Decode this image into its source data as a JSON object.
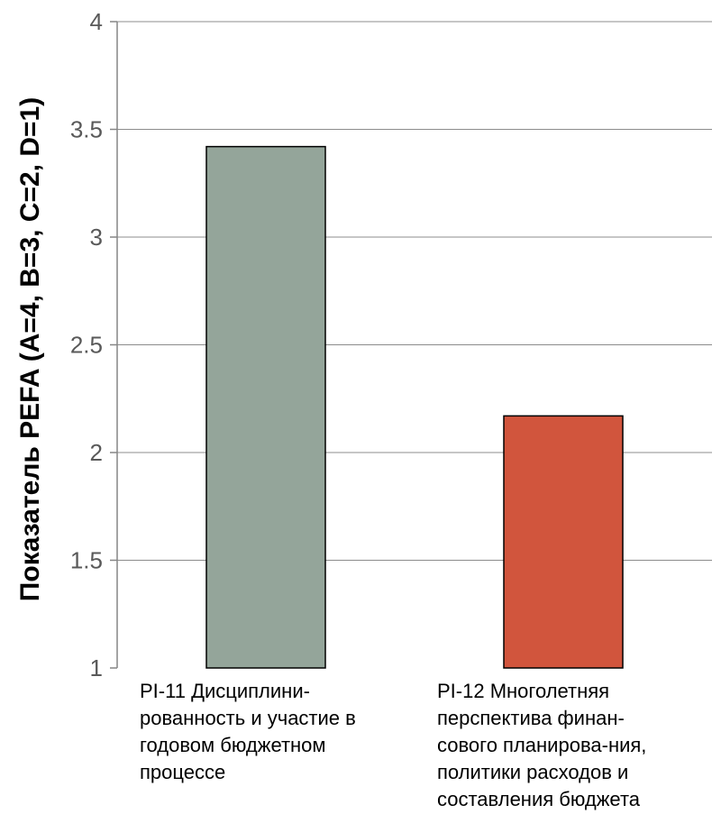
{
  "chart_data": {
    "type": "bar",
    "title": "",
    "xlabel": "",
    "ylabel": "Показатель PEFA (A=4, B=3, C=2, D=1)",
    "ylim": [
      1,
      4
    ],
    "yticks": [
      "1",
      "1.5",
      "2",
      "2.5",
      "3",
      "3.5",
      "4"
    ],
    "grid": true,
    "legend": "none",
    "categories": [
      [
        "PI-11 Дисциплини-",
        "рованность и участие в",
        "годовом бюджетном",
        "процессе"
      ],
      [
        "PI-12 Многолетняя",
        "перспектива финан-",
        "сового  планирова-ния,",
        "политики расходов и",
        "составления бюджета"
      ]
    ],
    "values": [
      3.42,
      2.17
    ],
    "colors": [
      "#94a59a",
      "#d1553d"
    ]
  }
}
